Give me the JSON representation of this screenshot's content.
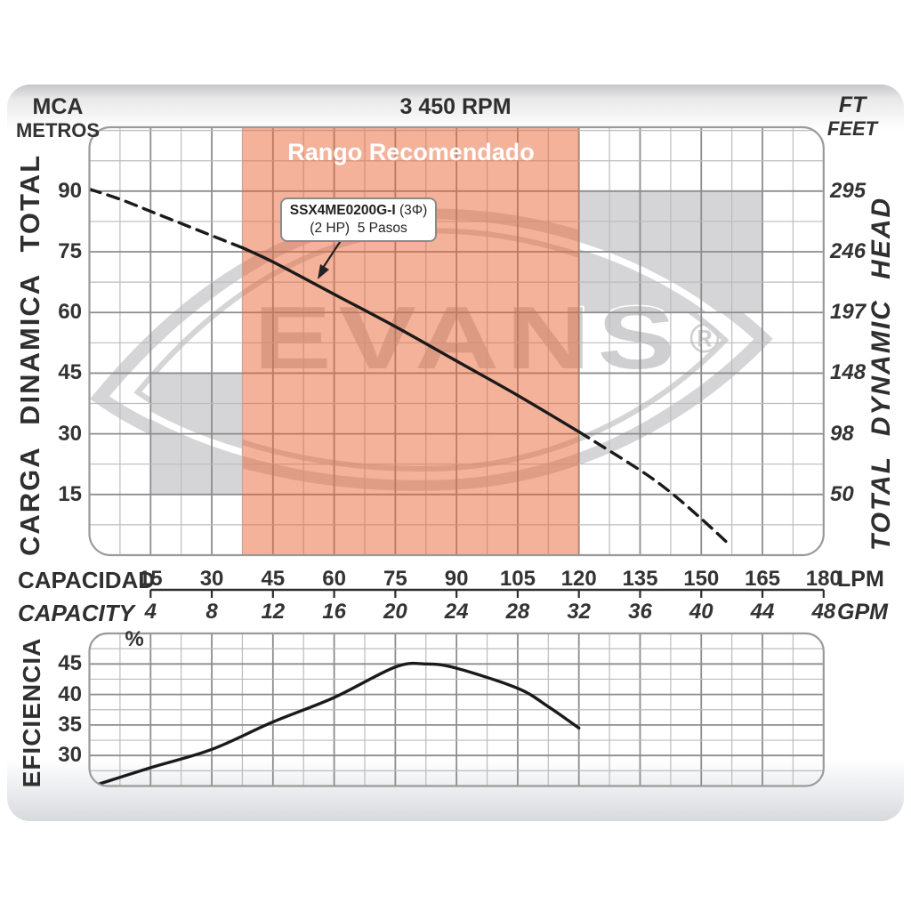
{
  "page": {
    "header": {
      "unit_left_top": "MCA",
      "unit_left_bottom": "METROS",
      "title": "3 450 RPM",
      "unit_right_top": "FT",
      "unit_right_bottom": "FEET"
    },
    "left_axis_title": "CARGA DINAMICA TOTAL",
    "right_axis_title": "TOTAL DYNAMIC HEAD",
    "efficiency_axis_title": "EFICIENCIA",
    "efficiency_unit": "%",
    "capacity_row1_label": "CAPACIDAD",
    "capacity_row2_label": "CAPACITY",
    "capacity_row1_unit": "LPM",
    "capacity_row2_unit": "GPM",
    "recommended_label": "Rango Recomendado",
    "watermark_text": "EVANS",
    "watermark_registered": "®",
    "annotation": {
      "line1_bold": "SSX4ME0200G-I",
      "line1_rest": " (3Φ)",
      "line2": "(2 HP)  5 Pasos"
    }
  },
  "chart_data": [
    {
      "type": "line",
      "title": "3 450 RPM",
      "xlabel": "CAPACIDAD / CAPACITY",
      "ylabel_left": "CARGA DINAMICA TOTAL (MCA METROS)",
      "ylabel_right": "TOTAL DYNAMIC HEAD (FT FEET)",
      "xlim_lpm": [
        0,
        180
      ],
      "ylim_m": [
        0,
        105.8
      ],
      "x_ticks_lpm": [
        15,
        30,
        45,
        60,
        75,
        90,
        105,
        120,
        135,
        150,
        165,
        180
      ],
      "x_ticks_gpm": [
        4,
        8,
        12,
        16,
        20,
        24,
        28,
        32,
        36,
        40,
        44,
        48
      ],
      "y_ticks_m": [
        90,
        75,
        60,
        45,
        30,
        15
      ],
      "y_ticks_ft": [
        295,
        246,
        197,
        148,
        98,
        50
      ],
      "grid_step_lpm": 7.5,
      "grid_step_m": 7.5,
      "recommended_range_lpm": [
        37.5,
        120
      ],
      "series": [
        {
          "name": "SSX4ME0200G-I (3Φ) (2 HP) 5 Pasos",
          "segments": [
            {
              "style": "dashed",
              "points_lpm_m": [
                [
                  0,
                  90.5
                ],
                [
                  7.5,
                  88
                ],
                [
                  15,
                  85
                ],
                [
                  22.5,
                  82
                ],
                [
                  30,
                  79
                ],
                [
                  37.5,
                  76
                ]
              ]
            },
            {
              "style": "solid",
              "points_lpm_m": [
                [
                  37.5,
                  76
                ],
                [
                  45,
                  72.5
                ],
                [
                  60,
                  64.5
                ],
                [
                  75,
                  56.5
                ],
                [
                  90,
                  48
                ],
                [
                  105,
                  39.5
                ],
                [
                  120,
                  30.5
                ]
              ]
            },
            {
              "style": "dashed",
              "points_lpm_m": [
                [
                  120,
                  30.5
                ],
                [
                  135,
                  21
                ],
                [
                  142.5,
                  15.5
                ],
                [
                  150,
                  9
                ],
                [
                  157,
                  2.5
                ]
              ]
            }
          ]
        }
      ]
    },
    {
      "type": "line",
      "title": "EFICIENCIA",
      "ylim_pct": [
        25,
        50
      ],
      "y_ticks_pct": [
        45,
        40,
        35,
        30
      ],
      "grid_step_pct": 2.5,
      "series": [
        {
          "name": "Eficiencia",
          "style": "solid",
          "points_lpm_pct": [
            [
              0.8,
              25
            ],
            [
              15,
              28
            ],
            [
              30,
              31
            ],
            [
              45,
              35.5
            ],
            [
              60,
              39.5
            ],
            [
              75,
              44.5
            ],
            [
              82.5,
              45
            ],
            [
              90,
              44.3
            ],
            [
              105,
              41
            ],
            [
              112.5,
              38
            ],
            [
              120,
              34.5
            ]
          ]
        }
      ]
    }
  ],
  "colors": {
    "recommended_band": "rgba(233,101,53,0.5)",
    "watermark_gray": "#d5d5d7",
    "watermark_letter": "#cfcfd1",
    "curve": "#1a1a1a",
    "grid_minor": "#bcbcbc",
    "grid_major": "#8d8d8d",
    "plot_border": "#9a9a9a",
    "axis_line": "#2c2c2c",
    "text": "#333333"
  }
}
